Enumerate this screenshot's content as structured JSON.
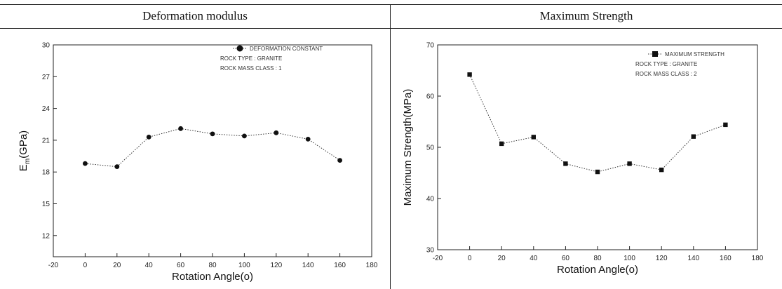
{
  "headers": [
    "Deformation modulus",
    "Maximum Strength"
  ],
  "chart_data": [
    {
      "type": "line",
      "xlabel": "Rotation Angle(o)",
      "ylabel": "E_m(GPa)",
      "ylabel_main": "E",
      "ylabel_sub": "m",
      "ylabel_rest": "(GPa)",
      "xlim": [
        -20,
        180
      ],
      "ylim": [
        10,
        30
      ],
      "xticks": [
        -20,
        0,
        20,
        40,
        60,
        80,
        100,
        120,
        140,
        160,
        180
      ],
      "yticks": [
        12,
        15,
        18,
        21,
        24,
        27,
        30
      ],
      "marker": "circle",
      "legend": [
        "DEFORMATION CONSTANT",
        "ROCK TYPE : GRANITE",
        "ROCK MASS CLASS : 1"
      ],
      "series": [
        {
          "name": "DEFORMATION CONSTANT",
          "x": [
            0,
            20,
            40,
            60,
            80,
            100,
            120,
            140,
            160
          ],
          "values": [
            18.8,
            18.5,
            21.3,
            22.1,
            21.6,
            21.4,
            21.7,
            21.1,
            19.1
          ]
        }
      ]
    },
    {
      "type": "line",
      "xlabel": "Rotation Angle(o)",
      "ylabel": "Maximum Strength(MPa)",
      "xlim": [
        -20,
        180
      ],
      "ylim": [
        30,
        70
      ],
      "xticks": [
        -20,
        0,
        20,
        40,
        60,
        80,
        100,
        120,
        140,
        160,
        180
      ],
      "yticks": [
        30,
        40,
        50,
        60,
        70
      ],
      "marker": "square",
      "legend": [
        "MAXIMUM STRENGTH",
        "ROCK TYPE : GRANITE",
        "ROCK MASS CLASS : 2"
      ],
      "series": [
        {
          "name": "MAXIMUM STRENGTH",
          "x": [
            0,
            20,
            40,
            60,
            80,
            100,
            120,
            140,
            160
          ],
          "values": [
            64.2,
            50.7,
            52.0,
            46.8,
            45.2,
            46.8,
            45.6,
            52.1,
            54.4
          ]
        }
      ]
    }
  ]
}
